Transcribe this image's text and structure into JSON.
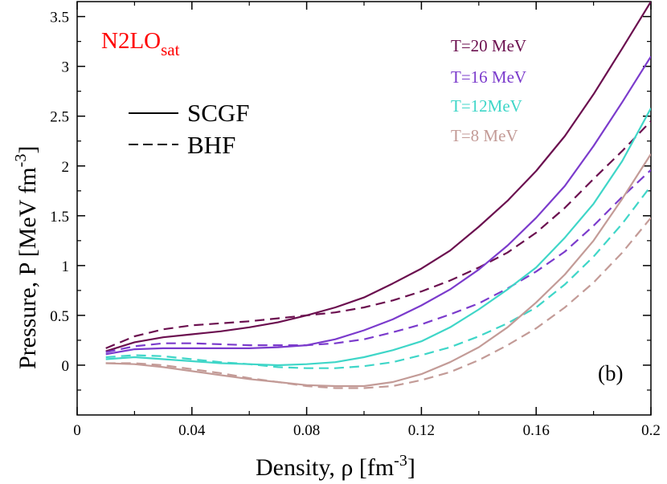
{
  "chart_data": {
    "type": "line",
    "title": "",
    "xlabel": "Density, ρ [fm",
    "xlabel_exp": "-3",
    "xlabel_close": "]",
    "ylabel": "Pressure, P [MeV fm",
    "ylabel_exp": "-3",
    "ylabel_close": "]",
    "xlim": [
      0,
      0.2
    ],
    "ylim": [
      -0.5,
      3.65
    ],
    "xticks": [
      0,
      0.04,
      0.08,
      0.12,
      0.16,
      0.2
    ],
    "xtick_labels": [
      "0",
      "0.04",
      "0.08",
      "0.12",
      "0.16",
      "0.2"
    ],
    "yticks": [
      0,
      0.5,
      1,
      1.5,
      2,
      2.5,
      3,
      3.5
    ],
    "ytick_labels": [
      "0",
      "0.5",
      "1",
      "1.5",
      "2",
      "2.5",
      "3",
      "3.5"
    ],
    "model_label": "N2LO",
    "model_label_sub": "sat",
    "model_color": "#ff0000",
    "panel_label": "(b)",
    "legend": {
      "position": "top-left",
      "entries": [
        {
          "label": "SCGF",
          "style": "solid"
        },
        {
          "label": "BHF",
          "style": "dashed"
        }
      ]
    },
    "temperature_labels": [
      {
        "label": "T=20 MeV",
        "color": "#6b0f4f"
      },
      {
        "label": "T=16 MeV",
        "color": "#7b3bcc"
      },
      {
        "label": "T=12MeV",
        "color": "#3fd6c8"
      },
      {
        "label": "T=8 MeV",
        "color": "#c39b97"
      }
    ],
    "series": [
      {
        "name": "SCGF T=20 MeV",
        "temperature": "T=20 MeV",
        "method": "SCGF",
        "style": "solid",
        "color": "#6b0f4f",
        "x": [
          0.01,
          0.02,
          0.03,
          0.04,
          0.05,
          0.06,
          0.07,
          0.08,
          0.09,
          0.1,
          0.11,
          0.12,
          0.13,
          0.14,
          0.15,
          0.16,
          0.17,
          0.18,
          0.19,
          0.2
        ],
        "y": [
          0.14,
          0.23,
          0.28,
          0.31,
          0.34,
          0.38,
          0.43,
          0.5,
          0.58,
          0.68,
          0.82,
          0.97,
          1.15,
          1.39,
          1.65,
          1.95,
          2.3,
          2.72,
          3.18,
          3.65
        ]
      },
      {
        "name": "BHF T=20 MeV",
        "temperature": "T=20 MeV",
        "method": "BHF",
        "style": "dashed",
        "color": "#6b0f4f",
        "x": [
          0.01,
          0.02,
          0.03,
          0.04,
          0.05,
          0.06,
          0.07,
          0.08,
          0.09,
          0.1,
          0.11,
          0.12,
          0.13,
          0.14,
          0.15,
          0.16,
          0.17,
          0.18,
          0.19,
          0.2
        ],
        "y": [
          0.17,
          0.29,
          0.36,
          0.4,
          0.42,
          0.44,
          0.47,
          0.5,
          0.53,
          0.58,
          0.65,
          0.74,
          0.85,
          0.98,
          1.13,
          1.33,
          1.58,
          1.87,
          2.15,
          2.45
        ]
      },
      {
        "name": "SCGF T=16 MeV",
        "temperature": "T=16 MeV",
        "method": "SCGF",
        "style": "solid",
        "color": "#7b3bcc",
        "x": [
          0.01,
          0.02,
          0.03,
          0.04,
          0.05,
          0.06,
          0.07,
          0.08,
          0.09,
          0.1,
          0.11,
          0.12,
          0.13,
          0.14,
          0.15,
          0.16,
          0.17,
          0.18,
          0.19,
          0.2
        ],
        "y": [
          0.11,
          0.16,
          0.17,
          0.17,
          0.17,
          0.17,
          0.18,
          0.2,
          0.26,
          0.35,
          0.46,
          0.6,
          0.76,
          0.96,
          1.2,
          1.48,
          1.8,
          2.2,
          2.64,
          3.1
        ]
      },
      {
        "name": "BHF T=16 MeV",
        "temperature": "T=16 MeV",
        "method": "BHF",
        "style": "dashed",
        "color": "#7b3bcc",
        "x": [
          0.01,
          0.02,
          0.03,
          0.04,
          0.05,
          0.06,
          0.07,
          0.08,
          0.09,
          0.1,
          0.11,
          0.12,
          0.13,
          0.14,
          0.15,
          0.16,
          0.17,
          0.18,
          0.19,
          0.2
        ],
        "y": [
          0.13,
          0.19,
          0.22,
          0.22,
          0.21,
          0.2,
          0.2,
          0.2,
          0.22,
          0.26,
          0.33,
          0.41,
          0.51,
          0.62,
          0.77,
          0.94,
          1.14,
          1.4,
          1.69,
          1.96
        ]
      },
      {
        "name": "SCGF T=12 MeV",
        "temperature": "T=12MeV",
        "method": "SCGF",
        "style": "solid",
        "color": "#3fd6c8",
        "x": [
          0.01,
          0.02,
          0.03,
          0.04,
          0.05,
          0.06,
          0.07,
          0.08,
          0.09,
          0.1,
          0.11,
          0.12,
          0.13,
          0.14,
          0.15,
          0.16,
          0.17,
          0.18,
          0.19,
          0.2
        ],
        "y": [
          0.06,
          0.08,
          0.06,
          0.04,
          0.02,
          0.01,
          0.0,
          0.01,
          0.03,
          0.08,
          0.15,
          0.24,
          0.38,
          0.56,
          0.76,
          0.98,
          1.28,
          1.62,
          2.05,
          2.58
        ]
      },
      {
        "name": "BHF T=12 MeV",
        "temperature": "T=12MeV",
        "method": "BHF",
        "style": "dashed",
        "color": "#3fd6c8",
        "x": [
          0.01,
          0.02,
          0.03,
          0.04,
          0.05,
          0.06,
          0.07,
          0.08,
          0.09,
          0.1,
          0.11,
          0.12,
          0.13,
          0.14,
          0.15,
          0.16,
          0.17,
          0.18,
          0.19,
          0.2
        ],
        "y": [
          0.08,
          0.1,
          0.09,
          0.06,
          0.03,
          0.01,
          -0.02,
          -0.03,
          -0.03,
          -0.01,
          0.03,
          0.1,
          0.18,
          0.29,
          0.42,
          0.58,
          0.81,
          1.09,
          1.42,
          1.8
        ]
      },
      {
        "name": "SCGF T=8 MeV",
        "temperature": "T=8 MeV",
        "method": "SCGF",
        "style": "solid",
        "color": "#c39b97",
        "x": [
          0.01,
          0.02,
          0.03,
          0.04,
          0.05,
          0.06,
          0.07,
          0.08,
          0.09,
          0.1,
          0.11,
          0.12,
          0.13,
          0.14,
          0.15,
          0.16,
          0.17,
          0.18,
          0.19,
          0.2
        ],
        "y": [
          0.02,
          0.01,
          -0.02,
          -0.06,
          -0.1,
          -0.14,
          -0.17,
          -0.2,
          -0.21,
          -0.21,
          -0.17,
          -0.09,
          0.03,
          0.18,
          0.38,
          0.63,
          0.91,
          1.25,
          1.67,
          2.12
        ]
      },
      {
        "name": "BHF T=8 MeV",
        "temperature": "T=8 MeV",
        "method": "BHF",
        "style": "dashed",
        "color": "#c39b97",
        "x": [
          0.01,
          0.02,
          0.03,
          0.04,
          0.05,
          0.06,
          0.07,
          0.08,
          0.09,
          0.1,
          0.11,
          0.12,
          0.13,
          0.14,
          0.15,
          0.16,
          0.17,
          0.18,
          0.19,
          0.2
        ],
        "y": [
          0.02,
          0.02,
          0.0,
          -0.04,
          -0.08,
          -0.13,
          -0.17,
          -0.21,
          -0.23,
          -0.23,
          -0.21,
          -0.15,
          -0.07,
          0.05,
          0.2,
          0.37,
          0.58,
          0.83,
          1.13,
          1.48
        ]
      }
    ]
  }
}
